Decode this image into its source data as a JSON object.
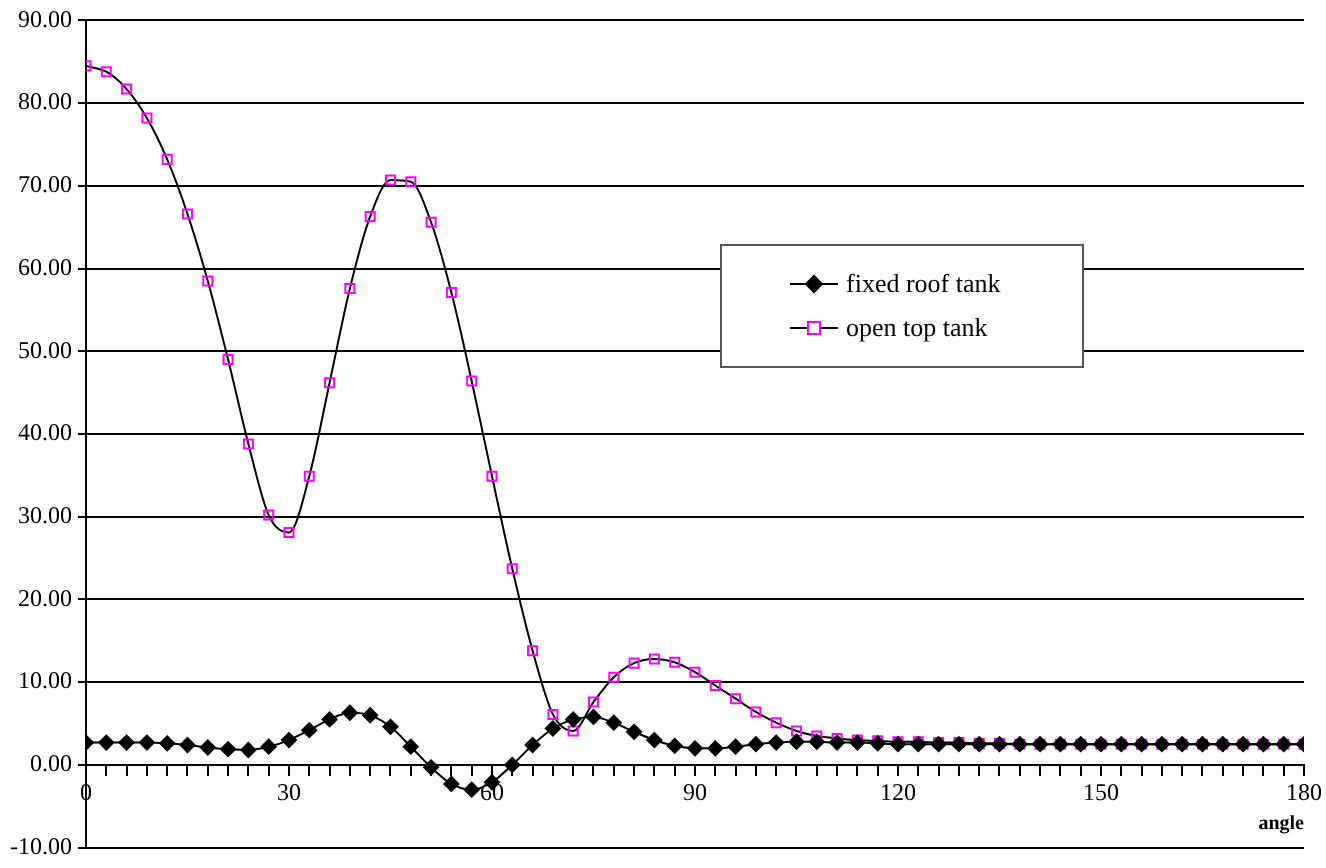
{
  "chart_data": {
    "type": "line",
    "xlabel": "angle",
    "x": [
      0,
      3,
      6,
      9,
      12,
      15,
      18,
      21,
      24,
      27,
      30,
      33,
      36,
      39,
      42,
      45,
      48,
      51,
      54,
      57,
      60,
      63,
      66,
      69,
      72,
      75,
      78,
      81,
      84,
      87,
      90,
      93,
      96,
      99,
      102,
      105,
      108,
      111,
      114,
      117,
      120,
      123,
      126,
      129,
      132,
      135,
      138,
      141,
      144,
      147,
      150,
      153,
      156,
      159,
      162,
      165,
      168,
      171,
      174,
      177,
      180
    ],
    "series": [
      {
        "name": "fixed roof tank",
        "color": "#000000",
        "marker": "diamond",
        "values": [
          2.7,
          2.7,
          2.7,
          2.7,
          2.6,
          2.4,
          2.1,
          1.9,
          1.8,
          2.2,
          3.0,
          4.2,
          5.5,
          6.3,
          6.0,
          4.6,
          2.2,
          -0.3,
          -2.3,
          -3.0,
          -2.1,
          0.0,
          2.4,
          4.4,
          5.5,
          5.8,
          5.1,
          4.0,
          3.0,
          2.3,
          2.0,
          2.0,
          2.2,
          2.5,
          2.7,
          2.8,
          2.8,
          2.7,
          2.7,
          2.6,
          2.5,
          2.5,
          2.5,
          2.5,
          2.5,
          2.5,
          2.5,
          2.5,
          2.5,
          2.5,
          2.5,
          2.5,
          2.5,
          2.5,
          2.5,
          2.5,
          2.5,
          2.5,
          2.5,
          2.5,
          2.5
        ]
      },
      {
        "name": "open top tank",
        "color": "#ff00ff",
        "marker": "square",
        "values": [
          84.5,
          83.8,
          81.7,
          78.2,
          73.2,
          66.6,
          58.5,
          49.0,
          38.8,
          30.2,
          28.1,
          34.9,
          46.2,
          57.6,
          66.3,
          70.7,
          70.5,
          65.6,
          57.1,
          46.4,
          34.9,
          23.7,
          13.8,
          6.1,
          4.1,
          7.6,
          10.6,
          12.3,
          12.8,
          12.4,
          11.2,
          9.6,
          8.0,
          6.4,
          5.1,
          4.1,
          3.5,
          3.2,
          3.0,
          2.9,
          2.8,
          2.8,
          2.7,
          2.7,
          2.6,
          2.6,
          2.5,
          2.5,
          2.5,
          2.5,
          2.5,
          2.5,
          2.5,
          2.5,
          2.5,
          2.5,
          2.5,
          2.5,
          2.5,
          2.5,
          2.5
        ]
      }
    ],
    "xlim": [
      0,
      180
    ],
    "xticks": [
      0,
      {
        "value": 3,
        "label": null
      },
      {
        "value": 6,
        "label": null
      },
      {
        "value": 9,
        "label": null
      },
      {
        "value": 12,
        "label": null
      },
      {
        "value": 15,
        "label": null
      },
      {
        "value": 18,
        "label": null
      },
      {
        "value": 21,
        "label": null
      },
      {
        "value": 24,
        "label": null
      },
      {
        "value": 27,
        "label": null
      },
      30,
      {
        "value": 33,
        "label": null
      },
      {
        "value": 36,
        "label": null
      },
      {
        "value": 39,
        "label": null
      },
      {
        "value": 42,
        "label": null
      },
      {
        "value": 45,
        "label": null
      },
      {
        "value": 48,
        "label": null
      },
      {
        "value": 51,
        "label": null
      },
      {
        "value": 54,
        "label": null
      },
      {
        "value": 57,
        "label": null
      },
      60,
      {
        "value": 63,
        "label": null
      },
      {
        "value": 66,
        "label": null
      },
      {
        "value": 69,
        "label": null
      },
      {
        "value": 72,
        "label": null
      },
      {
        "value": 75,
        "label": null
      },
      {
        "value": 78,
        "label": null
      },
      {
        "value": 81,
        "label": null
      },
      {
        "value": 84,
        "label": null
      },
      {
        "value": 87,
        "label": null
      },
      90,
      {
        "value": 93,
        "label": null
      },
      {
        "value": 96,
        "label": null
      },
      {
        "value": 99,
        "label": null
      },
      {
        "value": 102,
        "label": null
      },
      {
        "value": 105,
        "label": null
      },
      {
        "value": 108,
        "label": null
      },
      {
        "value": 111,
        "label": null
      },
      {
        "value": 114,
        "label": null
      },
      {
        "value": 117,
        "label": null
      },
      120,
      {
        "value": 123,
        "label": null
      },
      {
        "value": 126,
        "label": null
      },
      {
        "value": 129,
        "label": null
      },
      {
        "value": 132,
        "label": null
      },
      {
        "value": 135,
        "label": null
      },
      {
        "value": 138,
        "label": null
      },
      {
        "value": 141,
        "label": null
      },
      {
        "value": 144,
        "label": null
      },
      {
        "value": 147,
        "label": null
      },
      150,
      {
        "value": 153,
        "label": null
      },
      {
        "value": 156,
        "label": null
      },
      {
        "value": 159,
        "label": null
      },
      {
        "value": 162,
        "label": null
      },
      {
        "value": 165,
        "label": null
      },
      {
        "value": 168,
        "label": null
      },
      {
        "value": 171,
        "label": null
      },
      {
        "value": 174,
        "label": null
      },
      {
        "value": 177,
        "label": null
      },
      180
    ],
    "ylim": [
      -10,
      90
    ],
    "yticks": [
      {
        "value": -10,
        "label": "-10.00"
      },
      {
        "value": 0,
        "label": "0.00"
      },
      {
        "value": 10,
        "label": "10.00"
      },
      {
        "value": 20,
        "label": "20.00"
      },
      {
        "value": 30,
        "label": "30.00"
      },
      {
        "value": 40,
        "label": "40.00"
      },
      {
        "value": 50,
        "label": "50.00"
      },
      {
        "value": 60,
        "label": "60.00"
      },
      {
        "value": 70,
        "label": "70.00"
      },
      {
        "value": 80,
        "label": "80.00"
      },
      {
        "value": 90,
        "label": "90.00"
      }
    ],
    "grid": "y",
    "legend": "right",
    "line_style": "solid"
  }
}
